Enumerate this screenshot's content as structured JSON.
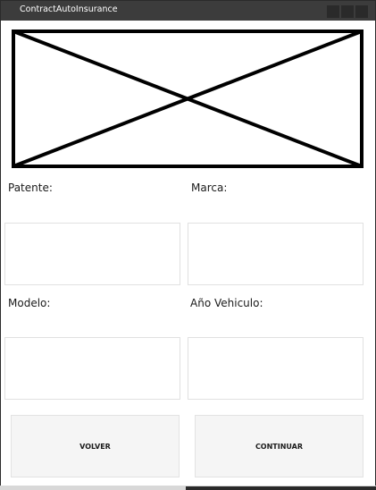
{
  "window": {
    "title": "ContractAutoInsurance"
  },
  "titlebar": {
    "buttons": [
      "minimize-icon",
      "maximize-icon",
      "close-icon"
    ]
  },
  "image": {
    "icon": "image-placeholder-icon"
  },
  "form": {
    "patente": {
      "label": "Patente:",
      "value": "",
      "placeholder": ""
    },
    "marca": {
      "label": "Marca:",
      "value": "",
      "placeholder": ""
    },
    "modelo": {
      "label": "Modelo:",
      "value": "",
      "placeholder": ""
    },
    "anio": {
      "label": "Año Vehiculo:",
      "value": "",
      "placeholder": ""
    }
  },
  "actions": {
    "back_label": "VOLVER",
    "continue_label": "CONTINUAR"
  }
}
